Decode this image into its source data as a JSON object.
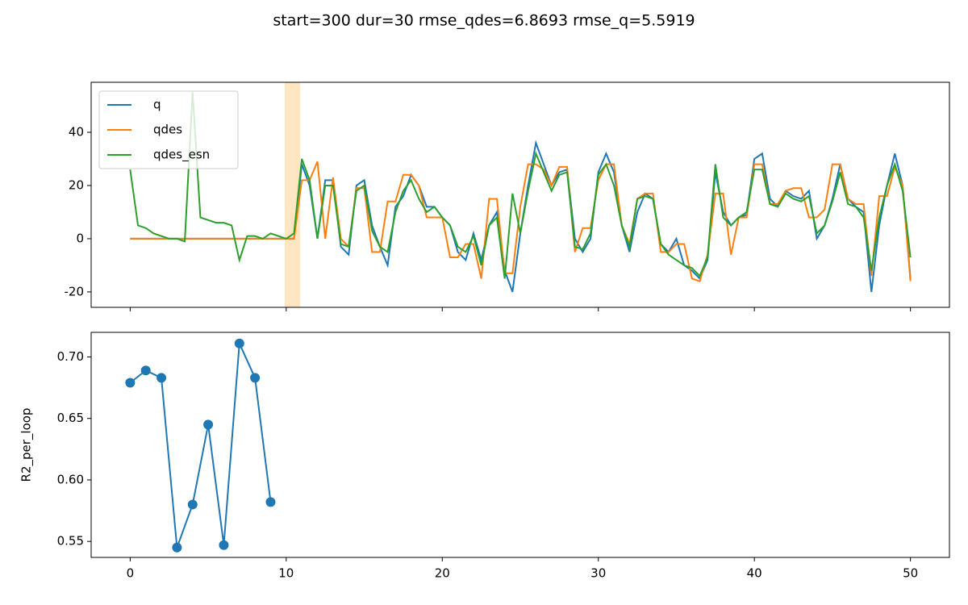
{
  "title": "start=300 dur=30 rmse_qdes=6.8693 rmse_q=5.5919",
  "chart_data": [
    {
      "type": "line",
      "xlim": [
        -2.5,
        52.5
      ],
      "ylim": [
        -25.8,
        58.8
      ],
      "xticks": [
        0,
        10,
        20,
        30,
        40,
        50
      ],
      "xtick_labels": false,
      "yticks": [
        -20,
        0,
        20,
        40
      ],
      "legend": "upper left",
      "span": [
        9.9,
        10.9
      ],
      "span_color": "#ffd699",
      "x": [
        0,
        0.5,
        1,
        1.5,
        2,
        2.5,
        3,
        3.5,
        4,
        4.5,
        5,
        5.5,
        6,
        6.5,
        7,
        7.5,
        8,
        8.5,
        9,
        9.5,
        10,
        10.5,
        11,
        11.5,
        12,
        12.5,
        13,
        13.5,
        14,
        14.5,
        15,
        15.5,
        16,
        16.5,
        17,
        17.5,
        18,
        18.5,
        19,
        19.5,
        20,
        20.5,
        21,
        21.5,
        22,
        22.5,
        23,
        23.5,
        24,
        24.5,
        25,
        25.5,
        26,
        26.5,
        27,
        27.5,
        28,
        28.5,
        29,
        29.5,
        30,
        30.5,
        31,
        31.5,
        32,
        32.5,
        33,
        33.5,
        34,
        34.5,
        35,
        35.5,
        36,
        36.5,
        37,
        37.5,
        38,
        38.5,
        39,
        39.5,
        40,
        40.5,
        41,
        41.5,
        42,
        42.5,
        43,
        43.5,
        44,
        44.5,
        45,
        45.5,
        46,
        46.5,
        47,
        47.5,
        48,
        48.5,
        49,
        49.5,
        50
      ],
      "series": [
        {
          "name": "q",
          "color": "#1f77b4",
          "values": [
            0,
            0,
            0,
            0,
            0,
            0,
            0,
            0,
            0,
            0,
            0,
            0,
            0,
            0,
            0,
            0,
            0,
            0,
            0,
            0,
            0,
            0,
            28,
            20,
            0,
            22,
            22,
            -3,
            -6,
            20,
            22,
            5,
            -3,
            -10,
            12,
            16,
            24,
            20,
            12,
            12,
            8,
            5,
            -5,
            -8,
            2,
            -8,
            5,
            10,
            -12,
            -20,
            2,
            20,
            36,
            28,
            20,
            25,
            26,
            0,
            -5,
            0,
            25,
            32,
            25,
            5,
            -5,
            10,
            17,
            15,
            -2,
            -5,
            0,
            -10,
            -12,
            -15,
            -8,
            25,
            10,
            5,
            8,
            9,
            30,
            32,
            15,
            12,
            18,
            16,
            15,
            18,
            0,
            5,
            15,
            28,
            15,
            12,
            10,
            -20,
            5,
            20,
            32,
            20,
            -15
          ]
        },
        {
          "name": "qdes",
          "color": "#ff7f0e",
          "values": [
            0,
            0,
            0,
            0,
            0,
            0,
            0,
            0,
            0,
            0,
            0,
            0,
            0,
            0,
            0,
            0,
            0,
            0,
            0,
            0,
            0,
            0,
            22,
            22,
            29,
            0,
            23,
            0,
            -3,
            19,
            19,
            -5,
            -5,
            14,
            14,
            24,
            24,
            20,
            8,
            8,
            8,
            -7,
            -7,
            -2,
            -2,
            -15,
            15,
            15,
            -13,
            -13,
            12,
            28,
            28,
            26,
            20,
            27,
            27,
            -5,
            4,
            4,
            22,
            28,
            28,
            5,
            -2,
            15,
            17,
            17,
            -5,
            -5,
            -2,
            -2,
            -15,
            -16,
            -6,
            17,
            17,
            -6,
            8,
            8,
            28,
            28,
            13,
            13,
            18,
            19,
            19,
            8,
            8,
            11,
            28,
            28,
            15,
            13,
            13,
            -14,
            16,
            16,
            27,
            20,
            -16
          ]
        },
        {
          "name": "qdes_esn",
          "color": "#2ca02c",
          "values": [
            26,
            5,
            4,
            2,
            1,
            0,
            0,
            -1,
            55,
            8,
            7,
            6,
            6,
            5,
            -8,
            1,
            1,
            0,
            2,
            1,
            0,
            2,
            30,
            22,
            0,
            20,
            20,
            -2,
            -3,
            18,
            20,
            3,
            -3,
            -5,
            10,
            18,
            22,
            15,
            10,
            12,
            8,
            5,
            -3,
            -5,
            1,
            -10,
            5,
            8,
            -15,
            17,
            2,
            18,
            32,
            25,
            18,
            24,
            25,
            -3,
            -4,
            2,
            24,
            28,
            20,
            5,
            -3,
            15,
            16,
            15,
            -2,
            -6,
            -8,
            -10,
            -11,
            -14,
            -7,
            28,
            8,
            5,
            8,
            10,
            26,
            26,
            13,
            12,
            17,
            15,
            14,
            16,
            2,
            5,
            14,
            25,
            13,
            12,
            8,
            -12,
            8,
            20,
            28,
            18,
            -7
          ]
        }
      ]
    },
    {
      "type": "line",
      "markers": true,
      "ylabel": "R2_per_loop",
      "xlim": [
        -2.5,
        52.5
      ],
      "ylim": [
        0.537,
        0.72
      ],
      "xticks": [
        0,
        10,
        20,
        30,
        40,
        50
      ],
      "yticks": [
        0.55,
        {
          "value": 0.6,
          "label": "0.60"
        },
        0.65,
        {
          "value": 0.7,
          "label": "0.70"
        }
      ],
      "x": [
        0,
        1,
        2,
        3,
        4,
        5,
        6,
        7,
        8,
        9
      ],
      "series": [
        {
          "name": "R2_per_loop",
          "color": "#1f77b4",
          "values": [
            0.679,
            0.689,
            0.683,
            0.545,
            0.58,
            0.645,
            0.547,
            0.711,
            0.683,
            0.582
          ]
        }
      ]
    }
  ]
}
